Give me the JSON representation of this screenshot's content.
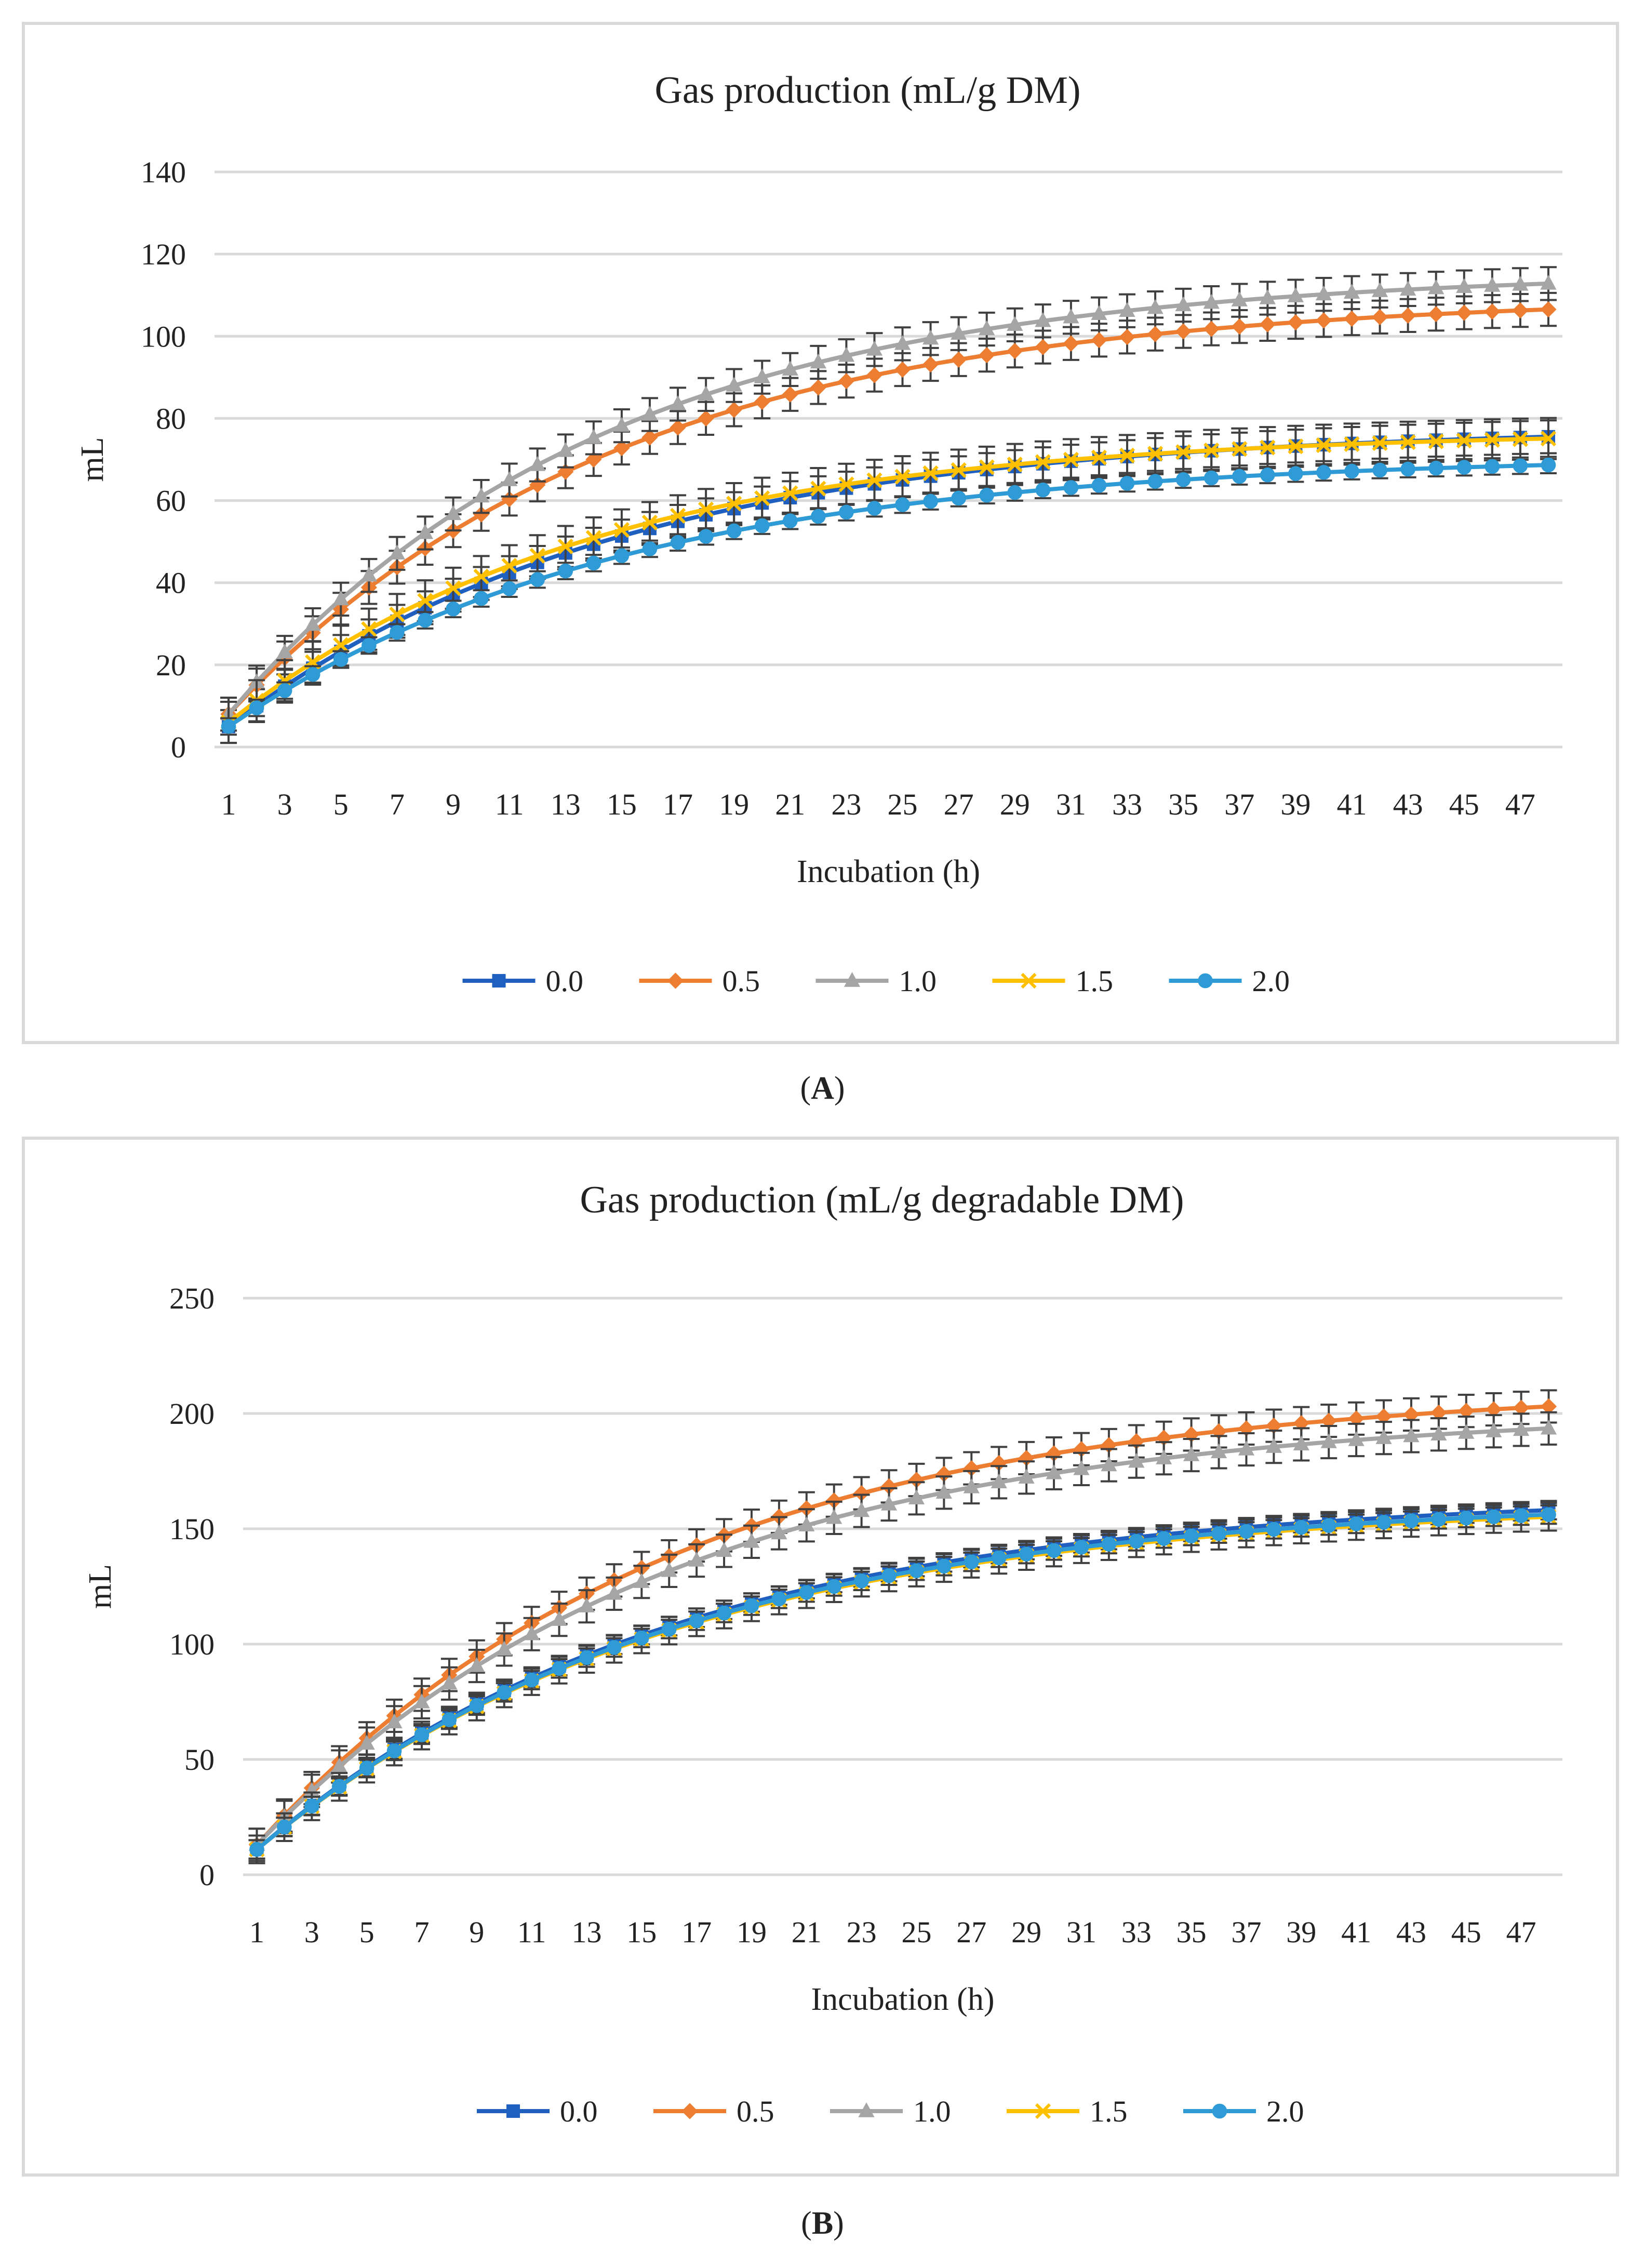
{
  "panels": [
    {
      "id": "A",
      "caption_open": "(",
      "caption_letter": "A",
      "caption_close": ")"
    },
    {
      "id": "B",
      "caption_open": "(",
      "caption_letter": "B",
      "caption_close": ")"
    }
  ],
  "chart_data": [
    {
      "type": "line",
      "title": "Gas production (mL/g DM)",
      "xlabel": "Incubation (h)",
      "ylabel": "mL",
      "ylim": [
        0,
        140
      ],
      "yticks": [
        0,
        20,
        40,
        60,
        80,
        100,
        120,
        140
      ],
      "xrange": [
        1,
        48
      ],
      "xtick_labels": [
        "1",
        "3",
        "5",
        "7",
        "9",
        "11",
        "13",
        "15",
        "17",
        "19",
        "21",
        "23",
        "25",
        "27",
        "29",
        "31",
        "33",
        "35",
        "37",
        "39",
        "41",
        "43",
        "45",
        "47"
      ],
      "grid": "horizontal",
      "legend": "bottom",
      "series": [
        {
          "name": "0.0",
          "color": "#1f5fbf",
          "marker": "square",
          "plateau": 78,
          "rate": 0.072,
          "start": 5,
          "err": 4
        },
        {
          "name": "0.5",
          "color": "#ed7d31",
          "marker": "diamond",
          "plateau": 110,
          "rate": 0.072,
          "start": 8,
          "err": 4
        },
        {
          "name": "1.0",
          "color": "#a5a5a5",
          "marker": "triangle",
          "plateau": 116,
          "rate": 0.075,
          "start": 8,
          "err": 4
        },
        {
          "name": "1.5",
          "color": "#ffc000",
          "marker": "x",
          "plateau": 77,
          "rate": 0.077,
          "start": 6,
          "err": 5
        },
        {
          "name": "2.0",
          "color": "#2e9bd6",
          "marker": "circle",
          "plateau": 71,
          "rate": 0.071,
          "start": 5,
          "err": 2
        }
      ]
    },
    {
      "type": "line",
      "title": "Gas production (mL/g degradable DM)",
      "xlabel": "Incubation (h)",
      "ylabel": "mL",
      "ylim": [
        0,
        250
      ],
      "yticks": [
        0,
        50,
        100,
        150,
        200,
        250
      ],
      "xrange": [
        1,
        48
      ],
      "xtick_labels": [
        "1",
        "3",
        "5",
        "7",
        "9",
        "11",
        "13",
        "15",
        "17",
        "19",
        "21",
        "23",
        "25",
        "27",
        "29",
        "31",
        "33",
        "35",
        "37",
        "39",
        "41",
        "43",
        "45",
        "47"
      ],
      "grid": "horizontal",
      "legend": "bottom",
      "series": [
        {
          "name": "0.0",
          "color": "#1f5fbf",
          "marker": "square",
          "plateau": 165,
          "rate": 0.066,
          "start": 11,
          "err": 4
        },
        {
          "name": "0.5",
          "color": "#ed7d31",
          "marker": "diamond",
          "plateau": 212,
          "rate": 0.066,
          "start": 13,
          "err": 7
        },
        {
          "name": "1.0",
          "color": "#a5a5a5",
          "marker": "triangle",
          "plateau": 202,
          "rate": 0.066,
          "start": 13,
          "err": 7
        },
        {
          "name": "1.5",
          "color": "#ffc000",
          "marker": "x",
          "plateau": 162,
          "rate": 0.066,
          "start": 11,
          "err": 6
        },
        {
          "name": "2.0",
          "color": "#2e9bd6",
          "marker": "circle",
          "plateau": 163,
          "rate": 0.066,
          "start": 11,
          "err": 4
        }
      ]
    }
  ]
}
